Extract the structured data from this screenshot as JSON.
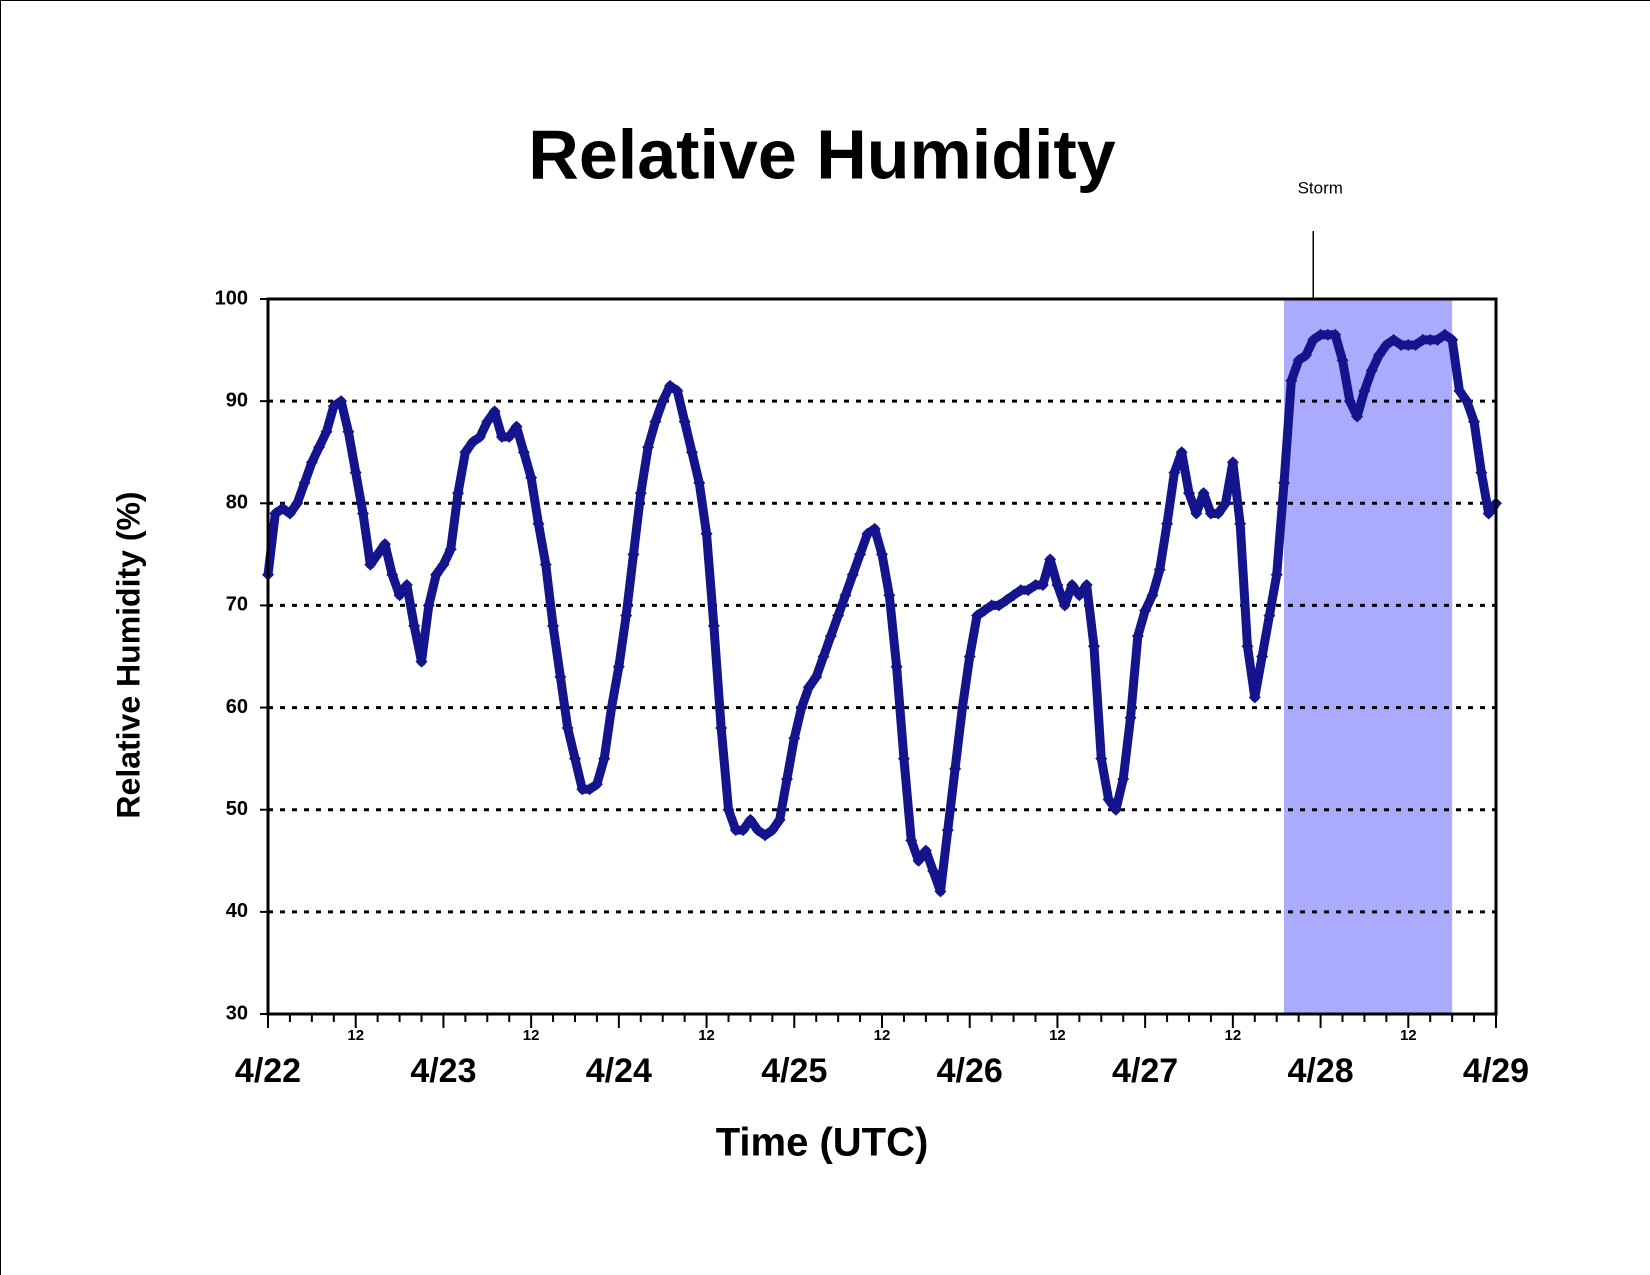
{
  "chart_data": {
    "type": "scatter",
    "title": "Relative Humidity",
    "x_label": "Time (UTC)",
    "y_label": "Relative Humidity (%)",
    "color": "#14148c",
    "grid": true,
    "shaded_span": [
      139,
      162
    ],
    "shaded_color": "#aaaaff",
    "annotations": [
      {
        "text": "Storm",
        "x": 143
      }
    ],
    "xlim": [
      0,
      168
    ],
    "ylim": [
      30,
      100
    ],
    "yticks": [
      30,
      40,
      50,
      60,
      70,
      80,
      90,
      100
    ],
    "xticks": [
      {
        "value": 0,
        "label": "4/22"
      },
      12,
      {
        "value": 24,
        "label": "4/23"
      },
      {
        "value": 36,
        "label": "12"
      },
      {
        "value": 48,
        "label": "4/24"
      },
      {
        "value": 60,
        "label": "12"
      },
      {
        "value": 72,
        "label": "4/25"
      },
      {
        "value": 84,
        "label": "12"
      },
      {
        "value": 96,
        "label": "4/26"
      },
      {
        "value": 108,
        "label": "12"
      },
      {
        "value": 120,
        "label": "4/27"
      },
      {
        "value": 132,
        "label": "12"
      },
      {
        "value": 144,
        "label": "4/28"
      },
      {
        "value": 156,
        "label": "12"
      },
      {
        "value": 168,
        "label": "4/29"
      }
    ],
    "xminorticks": [
      3,
      6,
      9,
      15,
      18,
      21,
      27,
      30,
      33,
      39,
      42,
      45,
      51,
      54,
      57,
      63,
      66,
      69,
      75,
      78,
      81,
      87,
      90,
      93,
      99,
      102,
      105,
      111,
      114,
      117,
      123,
      126,
      129,
      135,
      138,
      141,
      147,
      150,
      153,
      159,
      162,
      165
    ],
    "x": [
      0,
      1,
      2,
      3,
      4,
      5,
      6,
      7,
      8,
      9,
      10,
      11,
      12,
      13,
      14,
      15,
      16,
      17,
      18,
      19,
      20,
      21,
      22,
      23,
      24,
      25,
      26,
      27,
      28,
      29,
      30,
      31,
      32,
      33,
      34,
      35,
      36,
      37,
      38,
      39,
      40,
      41,
      42,
      43,
      44,
      45,
      46,
      47,
      48,
      49,
      50,
      51,
      52,
      53,
      54,
      55,
      56,
      57,
      58,
      59,
      60,
      61,
      62,
      63,
      64,
      65,
      66,
      67,
      68,
      69,
      70,
      71,
      72,
      73,
      74,
      75,
      76,
      77,
      78,
      79,
      80,
      81,
      82,
      83,
      84,
      85,
      86,
      87,
      88,
      89,
      90,
      91,
      92,
      93,
      94,
      95,
      96,
      97,
      98,
      99,
      100,
      101,
      102,
      103,
      104,
      105,
      106,
      107,
      108,
      109,
      110,
      111,
      112,
      113,
      114,
      115,
      116,
      117,
      118,
      119,
      120,
      121,
      122,
      123,
      124,
      125,
      126,
      127,
      128,
      129,
      130,
      131,
      132,
      133,
      134,
      135,
      136,
      137,
      138,
      139,
      140,
      141,
      142,
      143,
      144,
      145,
      146,
      147,
      148,
      149,
      150,
      151,
      152,
      153,
      154,
      155,
      156,
      157,
      158,
      159,
      160,
      161,
      162,
      163,
      164,
      165,
      166,
      167,
      168
    ],
    "values": [
      73,
      79,
      79.5,
      79,
      80,
      82,
      84,
      85.5,
      87,
      89.5,
      90,
      87,
      83,
      79,
      74,
      75,
      76,
      73,
      71,
      72,
      68,
      64.5,
      70,
      73,
      74,
      75.5,
      81,
      85,
      86,
      86.5,
      88,
      89,
      86.5,
      86.5,
      87.5,
      85,
      82.5,
      78,
      74,
      68,
      63,
      58,
      55,
      52,
      52,
      52.5,
      55,
      60,
      64,
      69,
      75,
      81,
      85.5,
      88,
      90,
      91.5,
      91,
      88,
      85,
      82,
      77,
      68,
      58,
      50,
      48,
      48,
      49,
      48,
      47.5,
      48,
      49,
      53,
      57,
      60,
      62,
      63,
      65,
      67,
      69,
      71,
      73,
      75,
      77,
      77.5,
      75,
      71,
      64,
      55,
      47,
      45,
      46,
      44,
      42,
      48,
      54,
      60,
      65,
      69,
      69.5,
      70,
      70,
      70.5,
      71,
      71.5,
      71.5,
      72,
      72,
      74.5,
      72,
      70,
      72,
      71,
      72,
      66,
      55,
      51,
      50,
      53,
      59,
      67,
      69.5,
      71,
      73.5,
      78,
      83,
      85,
      81,
      79,
      81,
      79,
      79,
      80,
      84,
      78,
      66,
      61,
      65,
      69,
      73,
      82,
      92,
      94,
      94.5,
      96,
      96.5,
      96.5,
      96.5,
      94,
      90,
      88.5,
      91,
      93,
      94.5,
      95.5,
      96,
      95.5,
      95.5,
      95.5,
      96,
      96,
      96,
      96.5,
      96,
      91,
      90,
      88,
      83,
      79,
      80
    ]
  }
}
